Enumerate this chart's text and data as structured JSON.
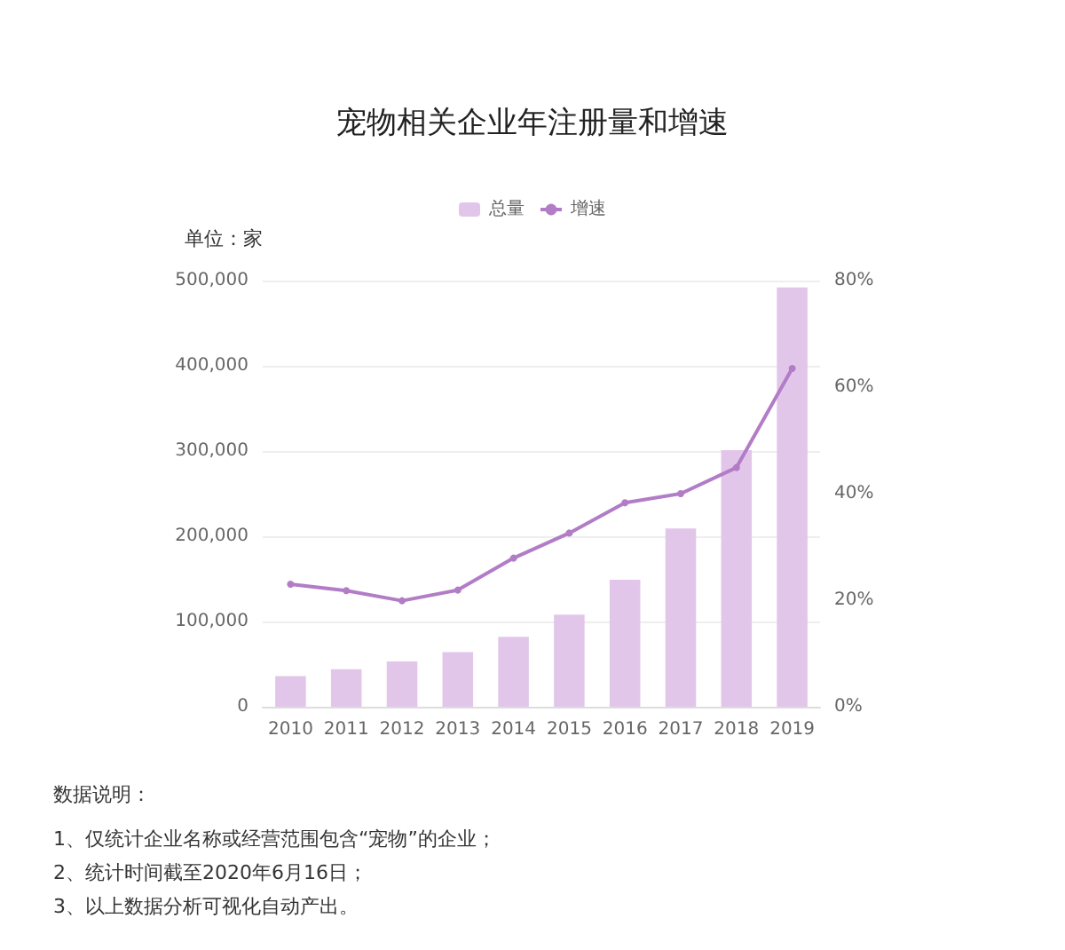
{
  "chart_data": {
    "type": "bar",
    "title": "宠物相关企业年注册量和增速",
    "ylabel": "单位：家",
    "categories": [
      "2010",
      "2011",
      "2012",
      "2013",
      "2014",
      "2015",
      "2016",
      "2017",
      "2018",
      "2019"
    ],
    "series": [
      {
        "name": "总量",
        "color": "#e2c6ea",
        "values": [
          36000,
          44000,
          53000,
          64000,
          82000,
          108000,
          149000,
          209000,
          301000,
          492000
        ]
      },
      {
        "name": "增速",
        "type": "line",
        "axis": "y2",
        "color": "#b27cc6",
        "values": [
          23,
          21.8,
          19.9,
          21.9,
          27.9,
          32.6,
          38.3,
          40,
          44.9,
          63.5
        ]
      }
    ],
    "ylim": [
      0,
      500000
    ],
    "yticks": [
      0,
      {
        "value": 100000,
        "label": "100,000"
      },
      {
        "value": 200000,
        "label": "200,000"
      },
      {
        "value": 300000,
        "label": "300,000"
      },
      {
        "value": 400000,
        "label": "400,000"
      },
      {
        "value": 500000,
        "label": "500,000"
      }
    ],
    "y2lim": [
      0,
      80
    ],
    "y2ticks": [
      {
        "value": 0,
        "label": "0%"
      },
      {
        "value": 20,
        "label": "20%"
      },
      {
        "value": 40,
        "label": "40%"
      },
      {
        "value": 60,
        "label": "60%"
      },
      {
        "value": 80,
        "label": "80%"
      }
    ],
    "grid": "y",
    "legend": "top",
    "marker": "circle",
    "annotations": [
      "数据说明：",
      "1、仅统计企业名称或经营范围包含“宠物”的企业；",
      "2、统计时间截至2020年6月16日；",
      "3、以上数据分析可视化自动产出。"
    ]
  }
}
